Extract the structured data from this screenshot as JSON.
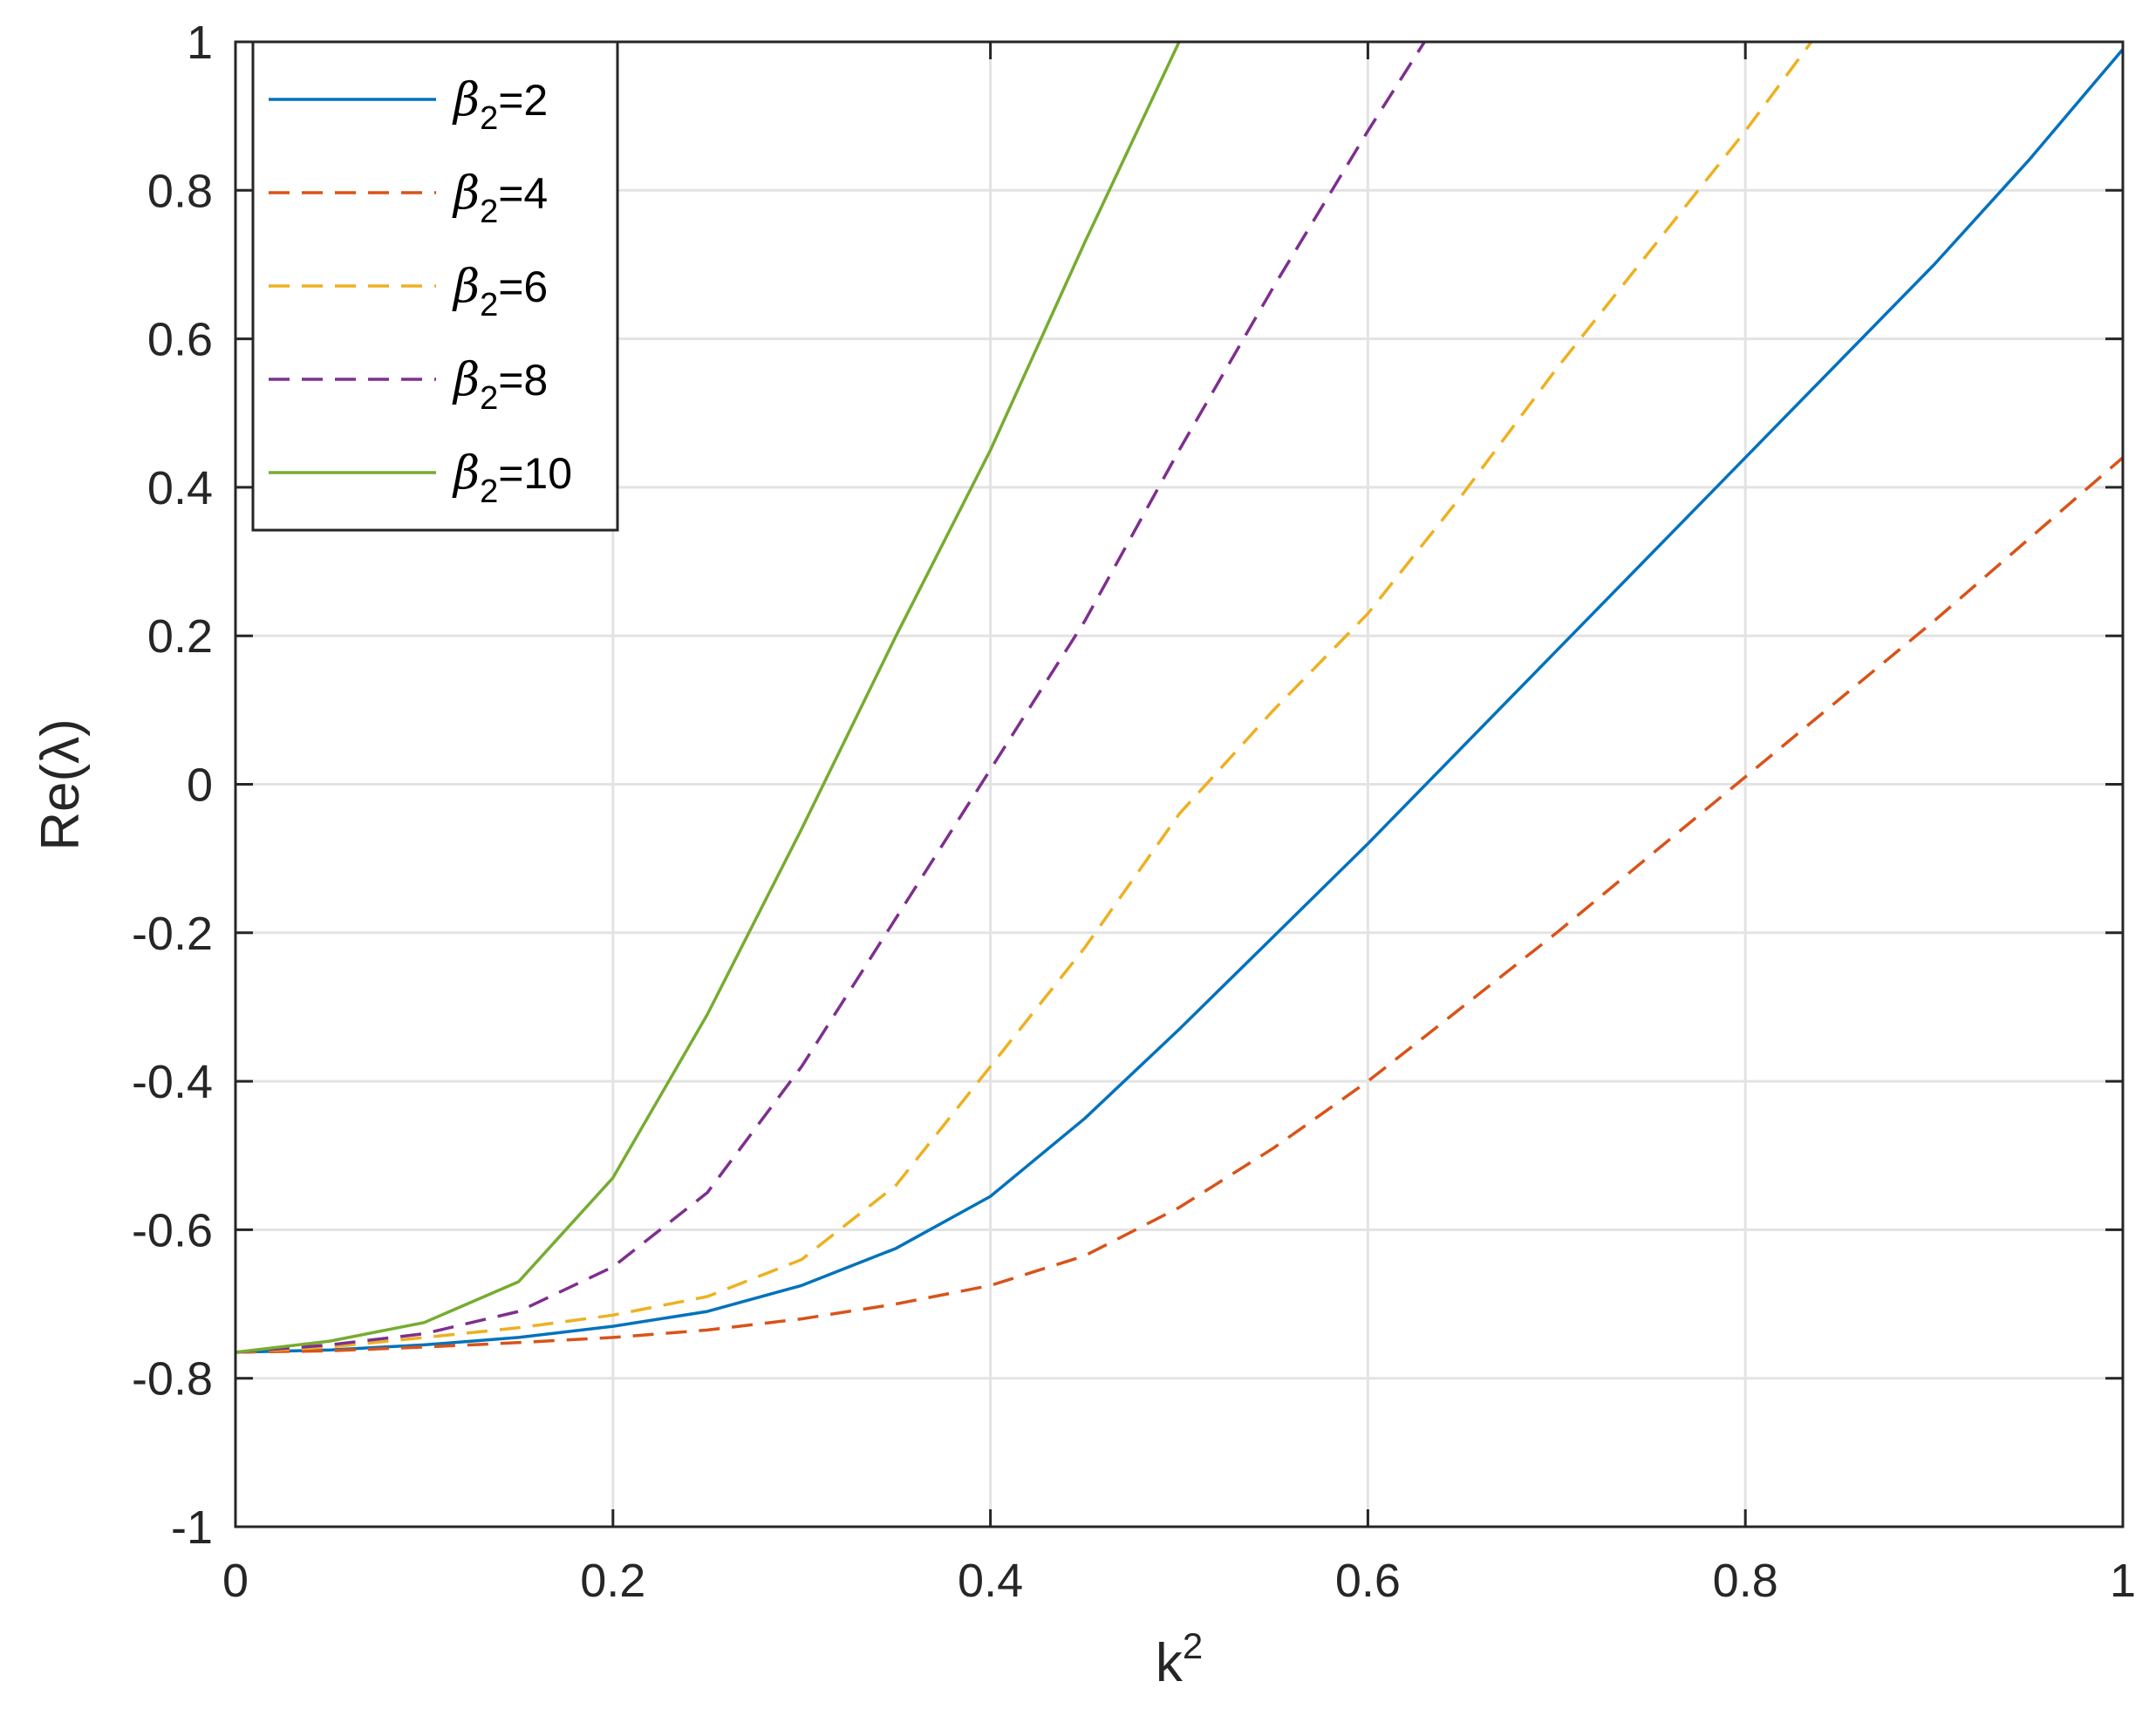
{
  "chart_data": {
    "type": "line",
    "xlabel_base": "k",
    "xlabel_sup": "2",
    "ylabel": "Re(λ)",
    "xlim": [
      0,
      1
    ],
    "ylim": [
      -1,
      1
    ],
    "x_ticks": [
      "0",
      "0.2",
      "0.4",
      "0.6",
      "0.8",
      "1"
    ],
    "y_ticks": [
      "-1",
      "-0.8",
      "-0.6",
      "-0.4",
      "-0.2",
      "0",
      "0.2",
      "0.4",
      "0.6",
      "0.8",
      "1"
    ],
    "grid": true,
    "legend_position": "top-left",
    "series": [
      {
        "name": "β2=2",
        "legend_symbol": "β",
        "legend_sub": "2",
        "legend_value": "=2",
        "color": "#0072BD",
        "dash": "solid",
        "x": [
          0,
          0.05,
          0.1,
          0.15,
          0.2,
          0.25,
          0.3,
          0.35,
          0.4,
          0.45,
          0.5,
          0.55,
          0.6,
          0.65,
          0.7,
          0.75,
          0.8,
          0.85,
          0.9,
          0.95,
          1.0
        ],
        "y": [
          -0.765,
          -0.762,
          -0.755,
          -0.745,
          -0.73,
          -0.71,
          -0.675,
          -0.625,
          -0.555,
          -0.45,
          -0.33,
          -0.205,
          -0.08,
          0.05,
          0.18,
          0.31,
          0.44,
          0.57,
          0.7,
          0.84,
          0.99
        ]
      },
      {
        "name": "β2=4",
        "legend_symbol": "β",
        "legend_sub": "2",
        "legend_value": "=4",
        "color": "#D95319",
        "dash": "dashed",
        "x": [
          0,
          0.05,
          0.1,
          0.15,
          0.2,
          0.25,
          0.3,
          0.35,
          0.4,
          0.45,
          0.5,
          0.55,
          0.6,
          0.65,
          0.7,
          0.75,
          0.8,
          0.85,
          0.9,
          0.95,
          1.0
        ],
        "y": [
          -0.765,
          -0.763,
          -0.758,
          -0.752,
          -0.745,
          -0.735,
          -0.72,
          -0.7,
          -0.675,
          -0.635,
          -0.57,
          -0.49,
          -0.4,
          -0.3,
          -0.2,
          -0.095,
          0.01,
          0.115,
          0.22,
          0.33,
          0.44
        ]
      },
      {
        "name": "β2=6",
        "legend_symbol": "β",
        "legend_sub": "2",
        "legend_value": "=6",
        "color": "#EDB120",
        "dash": "dashed",
        "x": [
          0,
          0.05,
          0.1,
          0.15,
          0.2,
          0.25,
          0.3,
          0.35,
          0.4,
          0.45,
          0.5,
          0.55,
          0.6,
          0.65,
          0.7,
          0.75,
          0.8,
          0.835
        ],
        "y": [
          -0.765,
          -0.758,
          -0.745,
          -0.732,
          -0.715,
          -0.69,
          -0.64,
          -0.54,
          -0.38,
          -0.22,
          -0.04,
          0.1,
          0.23,
          0.39,
          0.56,
          0.72,
          0.88,
          1.0
        ]
      },
      {
        "name": "β2=8",
        "legend_symbol": "β",
        "legend_sub": "2",
        "legend_value": "=8",
        "color": "#7E2F8E",
        "dash": "dashed",
        "x": [
          0,
          0.05,
          0.1,
          0.15,
          0.2,
          0.25,
          0.3,
          0.35,
          0.4,
          0.45,
          0.5,
          0.55,
          0.6,
          0.63
        ],
        "y": [
          -0.765,
          -0.755,
          -0.74,
          -0.71,
          -0.65,
          -0.55,
          -0.38,
          -0.18,
          0.02,
          0.22,
          0.45,
          0.67,
          0.88,
          1.0
        ]
      },
      {
        "name": "β2=10",
        "legend_symbol": "β",
        "legend_sub": "2",
        "legend_value": "=10",
        "color": "#77AC30",
        "dash": "solid",
        "x": [
          0,
          0.05,
          0.1,
          0.15,
          0.2,
          0.25,
          0.3,
          0.35,
          0.4,
          0.45,
          0.5
        ],
        "y": [
          -0.765,
          -0.75,
          -0.725,
          -0.67,
          -0.53,
          -0.31,
          -0.06,
          0.2,
          0.45,
          0.73,
          1.0
        ]
      }
    ]
  }
}
